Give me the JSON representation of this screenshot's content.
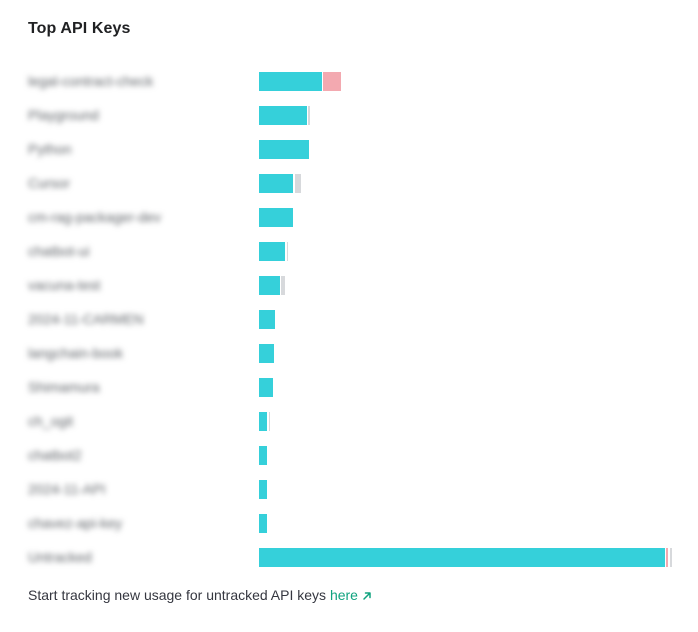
{
  "title": "Top API Keys",
  "footer": {
    "text": "Start tracking new usage for untracked API keys ",
    "link_label": "here",
    "link_icon": "arrow-up-right-icon"
  },
  "colors": {
    "primary": "#35d0da",
    "secondary": "#f3a9b0",
    "tertiary": "#d7d9dc"
  },
  "chart_data": {
    "type": "bar",
    "orientation": "horizontal",
    "stacked": true,
    "title": "Top API Keys",
    "categories": [
      "legal-contract-check",
      "Playground",
      "Python",
      "Cursor",
      "cm-rag-packager-dev",
      "chatbot-ui",
      "vacuna-test",
      "2024-11-CARMEN",
      "langchain-book",
      "Shimamura",
      "ch_ogit",
      "chatbot2",
      "2024-11-API",
      "chavez-api-key",
      "Untracked"
    ],
    "series": [
      {
        "values": [
          15.2,
          11.5,
          12.0,
          8.3,
          8.2,
          6.3,
          5.0,
          3.9,
          3.6,
          3.3,
          2.0,
          1.9,
          1.9,
          1.9,
          98.0
        ]
      },
      {
        "values": [
          4.6,
          0.0,
          0.0,
          0.0,
          0.0,
          0.0,
          0.0,
          0.0,
          0.0,
          0.0,
          0.0,
          0.0,
          0.0,
          0.0,
          0.8
        ]
      },
      {
        "values": [
          0.0,
          0.8,
          0.0,
          1.9,
          0.0,
          0.5,
          1.2,
          0.0,
          0.0,
          0.0,
          0.7,
          0.0,
          0.0,
          0.0,
          1.0
        ]
      }
    ],
    "xlim": [
      0,
      100
    ],
    "grid": false,
    "legend": "none"
  }
}
